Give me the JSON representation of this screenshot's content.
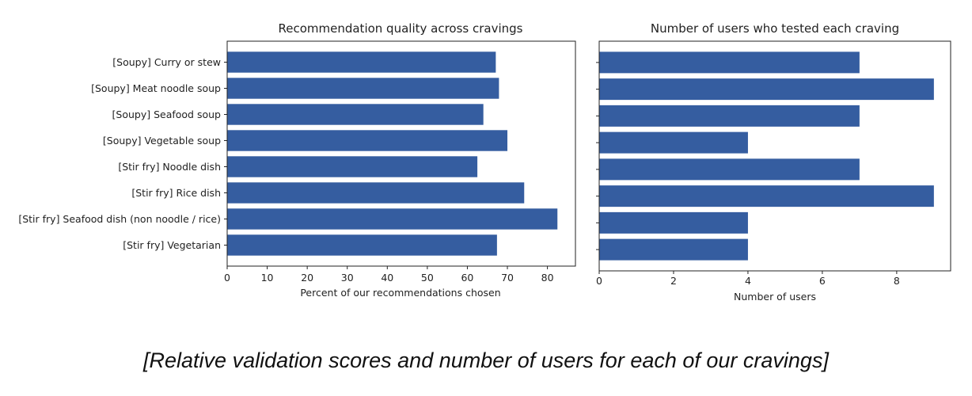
{
  "chart_data": [
    {
      "type": "bar",
      "orientation": "horizontal",
      "title": "Recommendation quality across cravings",
      "xlabel": "Percent of our recommendations chosen",
      "ylabel": "",
      "categories": [
        "[Soupy] Curry or stew",
        "[Soupy] Meat noodle soup",
        "[Soupy] Seafood soup",
        "[Soupy] Vegetable soup",
        "[Stir fry] Noodle dish",
        "[Stir fry] Rice dish",
        "[Stir fry] Seafood dish (non noodle / rice)",
        "[Stir fry] Vegetarian"
      ],
      "values": [
        67.1,
        67.9,
        64.0,
        70.0,
        62.5,
        74.2,
        82.5,
        67.4
      ],
      "xlim": [
        0,
        87
      ],
      "xticks": [
        0,
        10,
        20,
        30,
        40,
        50,
        60,
        70,
        80
      ],
      "grid": false,
      "color": "#355da0"
    },
    {
      "type": "bar",
      "orientation": "horizontal",
      "title": "Number of users who tested each craving",
      "xlabel": "Number of users",
      "ylabel": "",
      "categories": [
        "[Soupy] Curry or stew",
        "[Soupy] Meat noodle soup",
        "[Soupy] Seafood soup",
        "[Soupy] Vegetable soup",
        "[Stir fry] Noodle dish",
        "[Stir fry] Rice dish",
        "[Stir fry] Seafood dish (non noodle / rice)",
        "[Stir fry] Vegetarian"
      ],
      "values": [
        7,
        9,
        7,
        4,
        7,
        9,
        4,
        4
      ],
      "xlim": [
        0,
        9.45
      ],
      "xticks": [
        0,
        2,
        4,
        6,
        8
      ],
      "grid": false,
      "color": "#355da0"
    }
  ],
  "caption": "[Relative validation scores and number of users for each of our cravings]"
}
